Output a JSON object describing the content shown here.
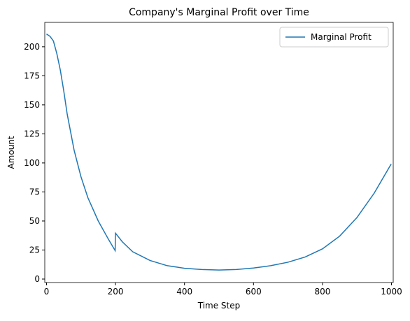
{
  "chart_data": {
    "type": "line",
    "title": "Company's Marginal Profit over Time",
    "x_label": "Time Step",
    "y_label": "Amount",
    "x": [
      0,
      10,
      20,
      30,
      40,
      50,
      60,
      80,
      100,
      120,
      150,
      180,
      199,
      200,
      220,
      250,
      300,
      350,
      400,
      450,
      500,
      550,
      600,
      650,
      700,
      750,
      800,
      850,
      900,
      950,
      999
    ],
    "series": [
      {
        "name": "Marginal Profit",
        "color": "#1f77b4",
        "values": [
          211,
          209,
          205,
          194,
          180,
          162,
          142,
          111,
          88,
          70,
          50,
          34,
          24.5,
          39.5,
          32,
          23.5,
          16,
          11.5,
          9.3,
          8.2,
          7.8,
          8.2,
          9.5,
          11.5,
          14.5,
          19,
          26,
          37,
          53,
          74,
          99
        ]
      }
    ],
    "xlim": [
      -5,
      1005
    ],
    "ylim": [
      -3,
      221
    ],
    "xticks": [
      0,
      200,
      400,
      600,
      800,
      1000
    ],
    "yticks": [
      0,
      25,
      50,
      75,
      100,
      125,
      150,
      175,
      200
    ],
    "legend": "upper right"
  }
}
